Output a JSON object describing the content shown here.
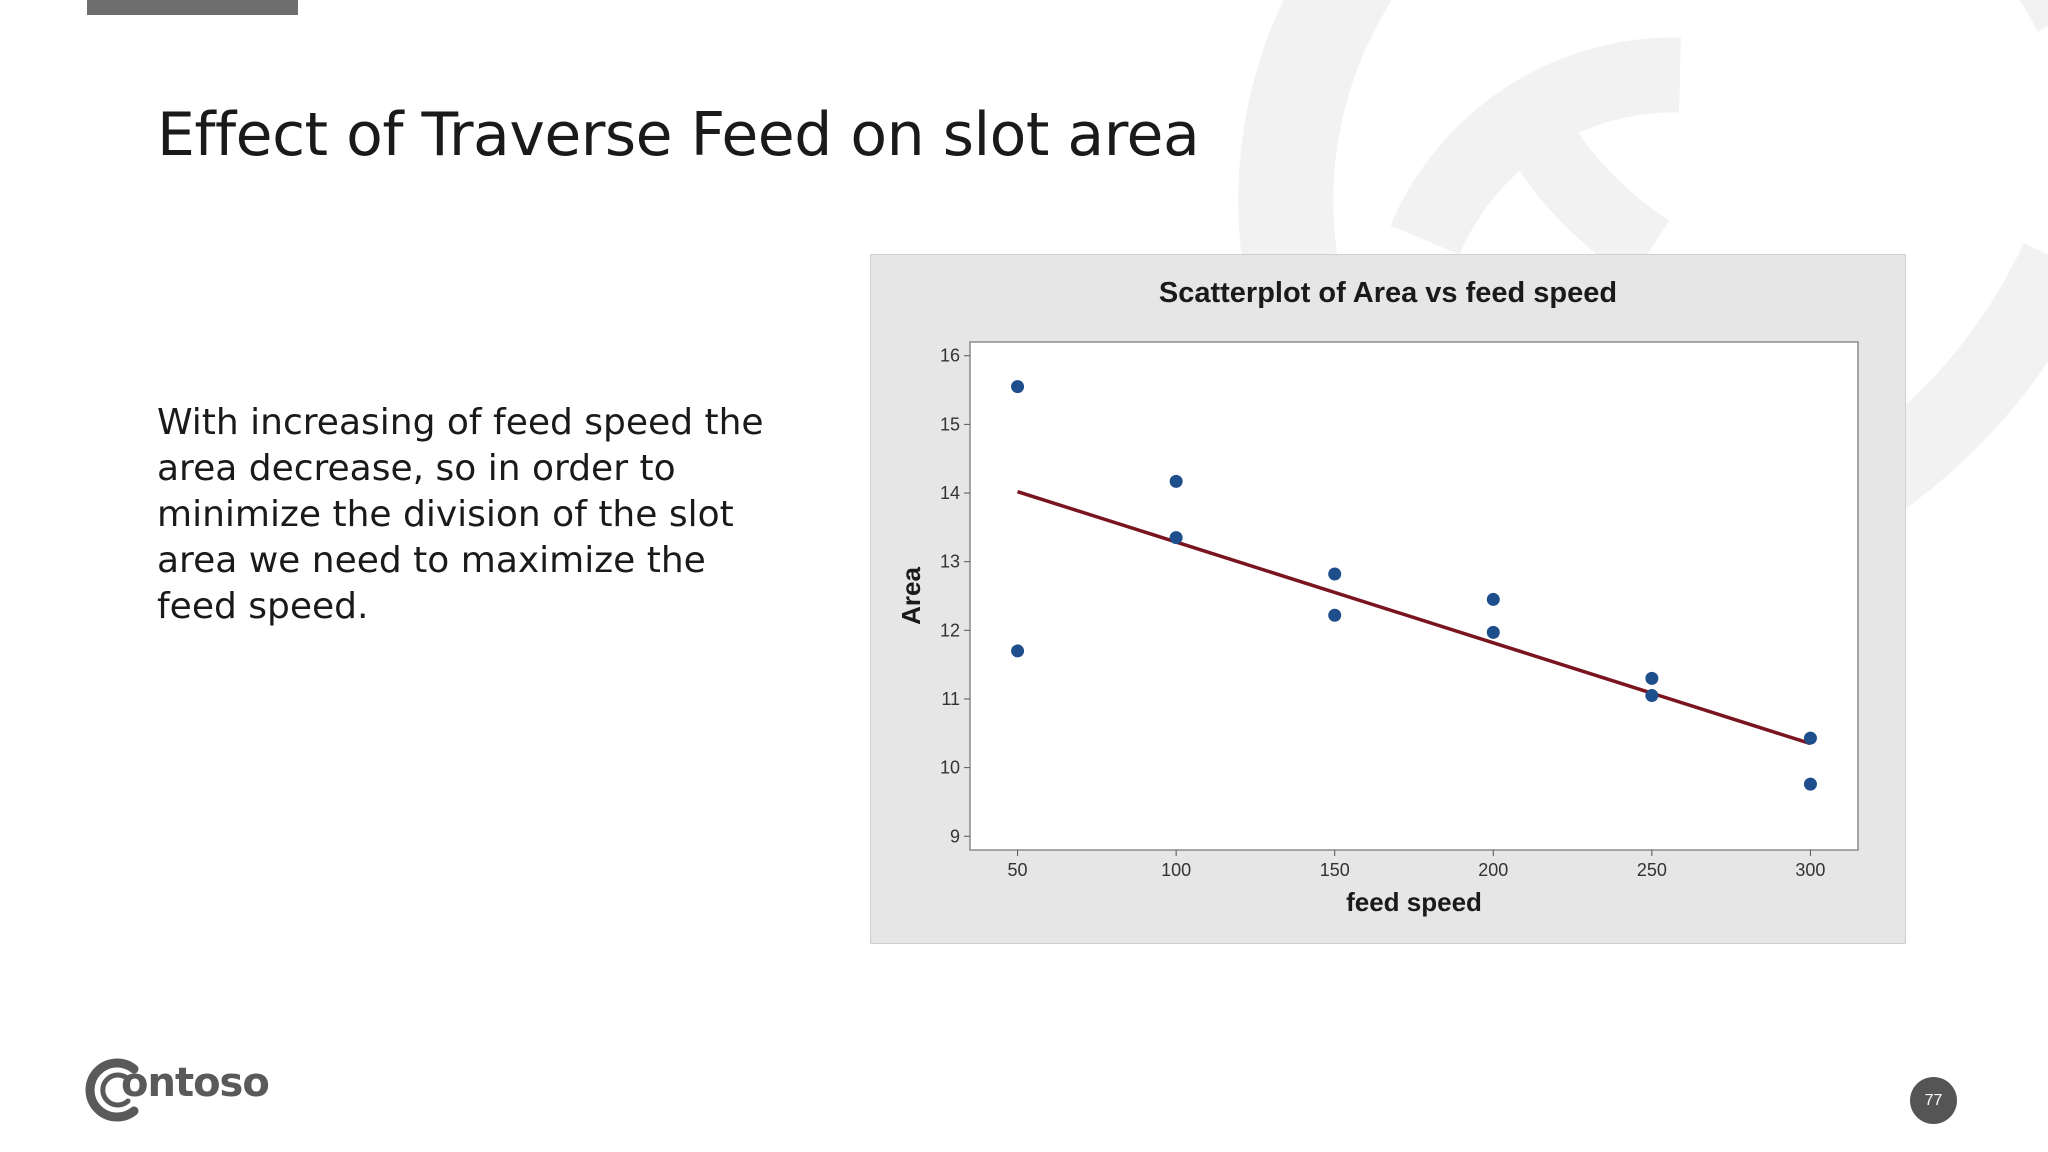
{
  "slide": {
    "title": "Effect of Traverse Feed on slot area",
    "body": "With increasing of feed speed the area decrease, so in order to minimize the division of the slot area we need to maximize the feed speed.",
    "page_number": "77"
  },
  "brand": {
    "name": "ontoso",
    "logo": "contoso-logo-icon",
    "text_color": "#5a5a5a"
  },
  "colors": {
    "accent_bar": "#6e6e6e",
    "points": "#1f4e8c",
    "fit_line": "#7a1520",
    "chart_bg": "#e6e6e6",
    "plot_bg": "#ffffff"
  },
  "chart_data": {
    "type": "scatter",
    "title": "Scatterplot of Area vs feed speed",
    "xlabel": "feed speed",
    "ylabel": "Area",
    "xlim": [
      35,
      315
    ],
    "ylim": [
      8.8,
      16.2
    ],
    "xticks": [
      50,
      100,
      150,
      200,
      250,
      300
    ],
    "yticks": [
      9,
      10,
      11,
      12,
      13,
      14,
      15,
      16
    ],
    "grid": false,
    "points": [
      {
        "x": 50,
        "y": 15.55
      },
      {
        "x": 50,
        "y": 11.7
      },
      {
        "x": 100,
        "y": 14.17
      },
      {
        "x": 100,
        "y": 13.35
      },
      {
        "x": 150,
        "y": 12.82
      },
      {
        "x": 150,
        "y": 12.22
      },
      {
        "x": 200,
        "y": 12.45
      },
      {
        "x": 200,
        "y": 11.97
      },
      {
        "x": 250,
        "y": 11.3
      },
      {
        "x": 250,
        "y": 11.05
      },
      {
        "x": 300,
        "y": 10.43
      },
      {
        "x": 300,
        "y": 9.76
      }
    ],
    "fit_line": {
      "x": [
        50,
        300
      ],
      "y": [
        14.02,
        10.35
      ]
    }
  }
}
